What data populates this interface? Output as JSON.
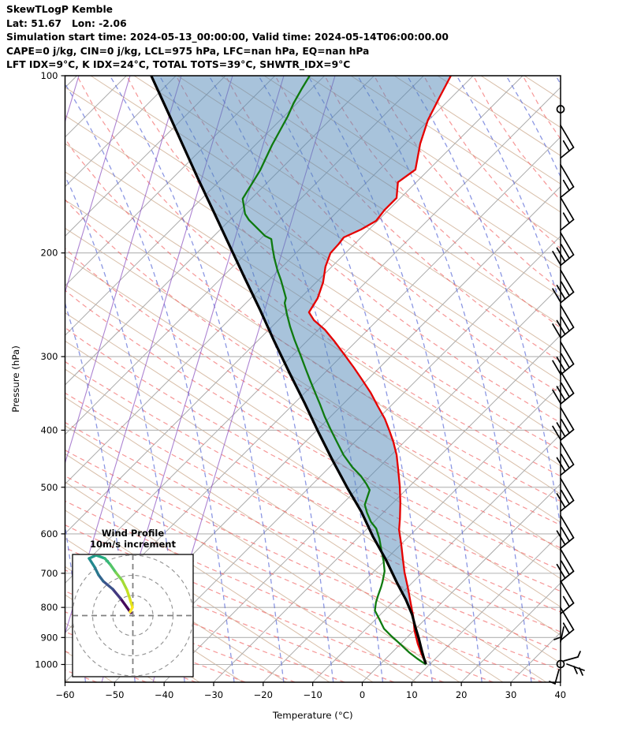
{
  "header": {
    "lines": [
      "SkewTLogP Kemble",
      "Lat: 51.67   Lon: -2.06",
      "Simulation start time: 2024-05-13_00:00:00, Valid time: 2024-05-14T06:00:00.00",
      "CAPE=0 j/kg, CIN=0 j/kg, LCL=975 hPa, LFC=nan hPa, EQ=nan hPa",
      "LFT IDX=9°C, K IDX=24°C, TOTAL TOTS=39°C, SHWTR_IDX=9°C"
    ]
  },
  "chart_data": {
    "type": "line",
    "subtype": "skewt-logp-sounding",
    "xlabel": "Temperature (°C)",
    "ylabel": "Pressure (hPa)",
    "x_ticks": [
      -60,
      -50,
      -40,
      -30,
      -20,
      -10,
      0,
      10,
      20,
      30,
      40
    ],
    "y_ticks": [
      100,
      200,
      300,
      400,
      500,
      600,
      700,
      800,
      900,
      1000
    ],
    "xlim": [
      -60,
      40
    ],
    "pressure_lim": [
      100,
      1070
    ],
    "skew_deg": 45,
    "series": [
      {
        "name": "temperature",
        "color": "#e50000",
        "points": [
          [
            100,
            -104.5
          ],
          [
            109,
            -102.4
          ],
          [
            118.9,
            -100.2
          ],
          [
            130.4,
            -97.0
          ],
          [
            144.4,
            -92.7
          ],
          [
            151.7,
            -93.7
          ],
          [
            161.3,
            -90.8
          ],
          [
            169.0,
            -90.8
          ],
          [
            176.4,
            -90.3
          ],
          [
            182.5,
            -91.6
          ],
          [
            188.2,
            -93.5
          ],
          [
            192.9,
            -93.2
          ],
          [
            200.2,
            -93.0
          ],
          [
            211.0,
            -91.3
          ],
          [
            224.4,
            -88.6
          ],
          [
            238.7,
            -86.5
          ],
          [
            252.3,
            -85.4
          ],
          [
            260.2,
            -82.8
          ],
          [
            270.0,
            -78.7
          ],
          [
            282.0,
            -74.6
          ],
          [
            298.1,
            -69.6
          ],
          [
            313.1,
            -65.2
          ],
          [
            327.9,
            -61.2
          ],
          [
            345.6,
            -56.7
          ],
          [
            363.1,
            -52.8
          ],
          [
            382.6,
            -48.6
          ],
          [
            400.7,
            -45.3
          ],
          [
            418.3,
            -42.3
          ],
          [
            440.9,
            -38.9
          ],
          [
            468.8,
            -35.4
          ],
          [
            498.7,
            -31.9
          ],
          [
            530.5,
            -28.6
          ],
          [
            564.2,
            -25.5
          ],
          [
            590.9,
            -23.3
          ],
          [
            624.7,
            -20.0
          ],
          [
            660.4,
            -16.8
          ],
          [
            698.0,
            -13.6
          ],
          [
            740.3,
            -9.9
          ],
          [
            785.2,
            -6.3
          ],
          [
            829.9,
            -2.9
          ],
          [
            877.0,
            0.2
          ],
          [
            921.6,
            3.4
          ],
          [
            956.3,
            6.0
          ],
          [
            977.2,
            7.6
          ],
          [
            998.5,
            9.2
          ]
        ]
      },
      {
        "name": "dewpoint",
        "color": "#0f7a0f",
        "points": [
          [
            100,
            -133.0
          ],
          [
            105.1,
            -132.0
          ],
          [
            111.4,
            -130.7
          ],
          [
            117.4,
            -129.2
          ],
          [
            131.2,
            -126.6
          ],
          [
            144.9,
            -123.9
          ],
          [
            161.8,
            -121.7
          ],
          [
            171.6,
            -118.2
          ],
          [
            175.9,
            -116.1
          ],
          [
            187.1,
            -109.7
          ],
          [
            189.4,
            -107.8
          ],
          [
            196.6,
            -105.6
          ],
          [
            204.5,
            -103.2
          ],
          [
            214.2,
            -100.2
          ],
          [
            222.3,
            -97.6
          ],
          [
            234.4,
            -94.1
          ],
          [
            238.7,
            -92.9
          ],
          [
            243.2,
            -92.2
          ],
          [
            254.0,
            -89.5
          ],
          [
            266.9,
            -86.3
          ],
          [
            281.2,
            -82.7
          ],
          [
            298.1,
            -78.5
          ],
          [
            315.0,
            -74.6
          ],
          [
            330.3,
            -71.2
          ],
          [
            345.6,
            -67.9
          ],
          [
            362.0,
            -64.5
          ],
          [
            379.2,
            -61.2
          ],
          [
            398.3,
            -57.5
          ],
          [
            418.3,
            -53.7
          ],
          [
            440.9,
            -49.6
          ],
          [
            462.2,
            -45.4
          ],
          [
            478.5,
            -41.9
          ],
          [
            494.1,
            -39.1
          ],
          [
            505.4,
            -37.3
          ],
          [
            521.9,
            -36.2
          ],
          [
            535.5,
            -35.3
          ],
          [
            552.8,
            -33.2
          ],
          [
            572.5,
            -30.6
          ],
          [
            587.5,
            -28.2
          ],
          [
            611.6,
            -25.5
          ],
          [
            640.4,
            -22.7
          ],
          [
            667.8,
            -20.1
          ],
          [
            694.4,
            -17.9
          ],
          [
            723.4,
            -16.2
          ],
          [
            738.9,
            -15.4
          ],
          [
            761.6,
            -14.4
          ],
          [
            785.2,
            -13.3
          ],
          [
            810.0,
            -11.9
          ],
          [
            835.2,
            -9.5
          ],
          [
            869.5,
            -6.4
          ],
          [
            896.1,
            -3.3
          ],
          [
            924.4,
            0.1
          ],
          [
            953.5,
            3.4
          ],
          [
            977.2,
            6.3
          ],
          [
            991.7,
            8.2
          ],
          [
            1000,
            9.3
          ]
        ]
      },
      {
        "name": "parcel",
        "color": "#000000",
        "points": [
          [
            100,
            -165.0
          ],
          [
            114.5,
            -154.8
          ],
          [
            131.2,
            -144.6
          ],
          [
            150.3,
            -134.4
          ],
          [
            171.2,
            -124.5
          ],
          [
            194.6,
            -114.8
          ],
          [
            220.3,
            -105.4
          ],
          [
            249.1,
            -96.0
          ],
          [
            282.0,
            -86.7
          ],
          [
            318.9,
            -77.3
          ],
          [
            359.6,
            -68.0
          ],
          [
            403.2,
            -59.3
          ],
          [
            450.5,
            -50.7
          ],
          [
            500.2,
            -42.4
          ],
          [
            550.2,
            -34.6
          ],
          [
            605.9,
            -27.3
          ],
          [
            663.4,
            -20.0
          ],
          [
            726.1,
            -13.1
          ],
          [
            775.6,
            -7.9
          ],
          [
            822.5,
            -3.6
          ],
          [
            864.1,
            -0.4
          ],
          [
            903.6,
            2.6
          ],
          [
            945.2,
            5.5
          ],
          [
            977.2,
            7.7
          ],
          [
            998.5,
            9.2
          ]
        ]
      }
    ],
    "shading": {
      "between": [
        "parcel",
        "temperature"
      ],
      "color": "#5187b7",
      "opacity": 0.5
    },
    "wind_barbs": [
      {
        "p": 114,
        "kind": "calm"
      },
      {
        "p": 138,
        "kind": "barb",
        "n": 2
      },
      {
        "p": 161,
        "kind": "barb",
        "n": 2
      },
      {
        "p": 183,
        "kind": "barb",
        "n": 2
      },
      {
        "p": 210,
        "kind": "barb",
        "n": 4
      },
      {
        "p": 243,
        "kind": "barb",
        "n": 4
      },
      {
        "p": 279,
        "kind": "barb",
        "n": 4
      },
      {
        "p": 322,
        "kind": "barb",
        "n": 4
      },
      {
        "p": 361,
        "kind": "barb",
        "n": 4
      },
      {
        "p": 416,
        "kind": "barb",
        "n": 4
      },
      {
        "p": 477,
        "kind": "barb",
        "n": 3
      },
      {
        "p": 549,
        "kind": "barb",
        "n": 3
      },
      {
        "p": 635,
        "kind": "barb",
        "n": 3
      },
      {
        "p": 724,
        "kind": "barb",
        "n": 3
      },
      {
        "p": 820,
        "kind": "barb",
        "n": 2
      },
      {
        "p": 910,
        "kind": "barb",
        "n": 2
      },
      {
        "p": 1000,
        "kind": "cluster"
      }
    ],
    "hodograph": {
      "title_line1": "Wind Profile",
      "title_line2": "10m/s increment",
      "ring_increment_ms": 10,
      "rings": [
        10,
        20,
        30
      ],
      "path": [
        {
          "x": 166,
          "y": 777,
          "c": "#440154"
        },
        {
          "x": 161,
          "y": 770,
          "c": "#46085c"
        },
        {
          "x": 153,
          "y": 759,
          "c": "#433880"
        },
        {
          "x": 143,
          "y": 747,
          "c": "#3b528b"
        },
        {
          "x": 131,
          "y": 737,
          "c": "#32648e"
        },
        {
          "x": 125,
          "y": 729,
          "c": "#2a788e"
        },
        {
          "x": 120,
          "y": 719,
          "c": "#23888e"
        },
        {
          "x": 113,
          "y": 708,
          "c": "#1f988b"
        },
        {
          "x": 122,
          "y": 704,
          "c": "#22a884"
        },
        {
          "x": 133,
          "y": 708,
          "c": "#35b779"
        },
        {
          "x": 140,
          "y": 716,
          "c": "#54c568"
        },
        {
          "x": 147,
          "y": 726,
          "c": "#7ad151"
        },
        {
          "x": 155,
          "y": 736,
          "c": "#a5db36"
        },
        {
          "x": 161,
          "y": 748,
          "c": "#c5e021"
        },
        {
          "x": 165,
          "y": 760,
          "c": "#e2e418"
        },
        {
          "x": 168,
          "y": 770,
          "c": "#fde725"
        },
        {
          "x": 165,
          "y": 776,
          "c": "#fde725"
        }
      ]
    },
    "style_colors": {
      "isotherm_gray": "#ababab",
      "isobar_gray": "#b3b3b3",
      "dry_adiabat_dashed_red": "#f25c5c",
      "moist_adiabat_dashed_blue": "#5767d6",
      "aux_tan": "#cfae93",
      "mixing_purple": "#8a4fbf"
    }
  }
}
